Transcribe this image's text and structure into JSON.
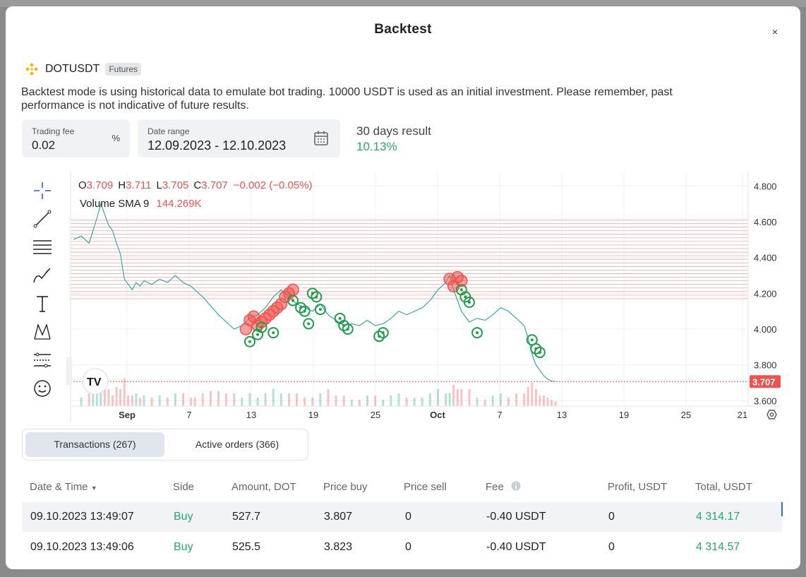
{
  "modal": {
    "title": "Backtest",
    "close_label": "×"
  },
  "pair": {
    "symbol": "DOTUSDT",
    "market": "Futures"
  },
  "description": "Backtest mode is using historical data to emulate bot trading. 10000 USDT is used as an initial investment. Please remember, past performance is not indicative of future results.",
  "fee_field": {
    "label": "Trading fee",
    "value": "0.02",
    "unit": "%"
  },
  "date_field": {
    "label": "Date range",
    "value": "12.09.2023 - 12.10.2023"
  },
  "result": {
    "label": "30 days result",
    "value": "10.13%"
  },
  "chart_data": {
    "type": "line",
    "ohlc_legend": {
      "o_label": "O",
      "o": "3.709",
      "h_label": "H",
      "h": "3.711",
      "l_label": "L",
      "l": "3.705",
      "c_label": "C",
      "c": "3.707",
      "change": "−0.002 (−0.05%)"
    },
    "volume_legend": {
      "label": "Volume SMA 9",
      "value": "144.269K"
    },
    "last_price": "3.707",
    "y_ticks": [
      "4.800",
      "4.600",
      "4.400",
      "4.200",
      "4.000",
      "3.800",
      "3.600"
    ],
    "x_ticks": [
      "Sep",
      "7",
      "13",
      "19",
      "25",
      "Oct",
      "7",
      "13",
      "19",
      "25",
      "21"
    ],
    "ylim": [
      3.57,
      4.88
    ],
    "x_index_range": [
      0,
      130
    ],
    "price_series": [
      [
        0,
        4.5
      ],
      [
        2,
        4.52
      ],
      [
        4,
        4.48
      ],
      [
        5,
        4.55
      ],
      [
        6,
        4.62
      ],
      [
        7,
        4.7
      ],
      [
        8,
        4.64
      ],
      [
        9,
        4.58
      ],
      [
        10,
        4.55
      ],
      [
        11,
        4.48
      ],
      [
        12,
        4.42
      ],
      [
        13,
        4.28
      ],
      [
        14,
        4.25
      ],
      [
        15,
        4.22
      ],
      [
        16,
        4.26
      ],
      [
        17,
        4.24
      ],
      [
        18,
        4.27
      ],
      [
        20,
        4.25
      ],
      [
        22,
        4.28
      ],
      [
        24,
        4.26
      ],
      [
        26,
        4.3
      ],
      [
        28,
        4.26
      ],
      [
        30,
        4.24
      ],
      [
        31,
        4.22
      ],
      [
        33,
        4.18
      ],
      [
        35,
        4.13
      ],
      [
        37,
        4.08
      ],
      [
        39,
        4.04
      ],
      [
        41,
        4.0
      ],
      [
        43,
        4.02
      ],
      [
        45,
        4.06
      ],
      [
        47,
        4.08
      ],
      [
        49,
        4.12
      ],
      [
        51,
        4.18
      ],
      [
        53,
        4.22
      ],
      [
        55,
        4.18
      ],
      [
        57,
        4.14
      ],
      [
        59,
        4.12
      ],
      [
        61,
        4.1
      ],
      [
        63,
        4.14
      ],
      [
        65,
        4.08
      ],
      [
        67,
        4.05
      ],
      [
        69,
        4.02
      ],
      [
        71,
        4.03
      ],
      [
        73,
        4.02
      ],
      [
        75,
        4.05
      ],
      [
        77,
        4.02
      ],
      [
        79,
        4.03
      ],
      [
        81,
        4.06
      ],
      [
        83,
        4.1
      ],
      [
        85,
        4.08
      ],
      [
        87,
        4.1
      ],
      [
        89,
        4.12
      ],
      [
        91,
        4.16
      ],
      [
        93,
        4.22
      ],
      [
        95,
        4.26
      ],
      [
        96,
        4.3
      ],
      [
        97,
        4.22
      ],
      [
        98,
        4.16
      ],
      [
        99,
        4.1
      ],
      [
        101,
        4.04
      ],
      [
        103,
        4.06
      ],
      [
        105,
        4.05
      ],
      [
        107,
        4.08
      ],
      [
        109,
        4.12
      ],
      [
        111,
        4.1
      ],
      [
        113,
        4.06
      ],
      [
        115,
        4.02
      ],
      [
        116,
        3.95
      ],
      [
        117,
        3.86
      ],
      [
        118,
        3.8
      ],
      [
        119,
        3.77
      ],
      [
        120,
        3.74
      ],
      [
        121,
        3.72
      ],
      [
        122,
        3.71
      ],
      [
        123,
        3.707
      ]
    ],
    "grid_lines": [
      4.61,
      4.59,
      4.57,
      4.55,
      4.53,
      4.51,
      4.49,
      4.47,
      4.45,
      4.43,
      4.41,
      4.39,
      4.37,
      4.35,
      4.33,
      4.31,
      4.29,
      4.27,
      4.25,
      4.23,
      4.21,
      4.19,
      4.17
    ],
    "sell_markers": [
      [
        44,
        4.0
      ],
      [
        45,
        4.05
      ],
      [
        46,
        4.07
      ],
      [
        47,
        4.02
      ],
      [
        48,
        4.04
      ],
      [
        49,
        4.06
      ],
      [
        50,
        4.08
      ],
      [
        51,
        4.1
      ],
      [
        52,
        4.12
      ],
      [
        53,
        4.14
      ],
      [
        54,
        4.18
      ],
      [
        55,
        4.2
      ],
      [
        56,
        4.22
      ],
      [
        96,
        4.28
      ],
      [
        97,
        4.24
      ],
      [
        98,
        4.29
      ],
      [
        99,
        4.27
      ]
    ],
    "buy_markers": [
      [
        45,
        3.93
      ],
      [
        47,
        3.97
      ],
      [
        48,
        4.01
      ],
      [
        51,
        3.98
      ],
      [
        56,
        4.16
      ],
      [
        58,
        4.12
      ],
      [
        59,
        4.1
      ],
      [
        60,
        4.03
      ],
      [
        61,
        4.2
      ],
      [
        62,
        4.18
      ],
      [
        63,
        4.11
      ],
      [
        68,
        4.06
      ],
      [
        69,
        4.02
      ],
      [
        70,
        4.0
      ],
      [
        78,
        3.96
      ],
      [
        79,
        3.98
      ],
      [
        99,
        4.22
      ],
      [
        100,
        4.18
      ],
      [
        101,
        4.15
      ],
      [
        103,
        3.98
      ],
      [
        117,
        3.94
      ],
      [
        118,
        3.89
      ],
      [
        119,
        3.87
      ]
    ]
  },
  "tabs": [
    {
      "label": "Transactions (267)"
    },
    {
      "label": "Active orders (366)"
    }
  ],
  "table": {
    "headers": {
      "datetime": "Date & Time",
      "side": "Side",
      "amount": "Amount, DOT",
      "price_buy": "Price buy",
      "price_sell": "Price sell",
      "fee": "Fee",
      "profit": "Profit, USDT",
      "total": "Total, USDT"
    },
    "rows": [
      {
        "datetime": "09.10.2023 13:49:07",
        "side": "Buy",
        "amount": "527.7",
        "price_buy": "3.807",
        "price_sell": "0",
        "fee": "-0.40 USDT",
        "profit": "0",
        "total": "4 314.17"
      },
      {
        "datetime": "09.10.2023 13:49:06",
        "side": "Buy",
        "amount": "525.5",
        "price_buy": "3.823",
        "price_sell": "0",
        "fee": "-0.40 USDT",
        "profit": "0",
        "total": "4 314.57"
      }
    ]
  },
  "colors": {
    "accent_green": "#26a96c",
    "sell_red": "#ef5350",
    "buy_green": "#1e9e4a",
    "grid_red": "#ef9a9a"
  }
}
